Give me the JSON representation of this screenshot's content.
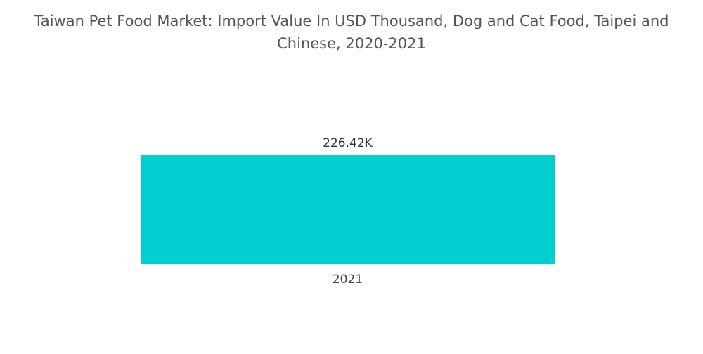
{
  "chart_data": {
    "type": "bar",
    "title": "Taiwan Pet Food Market: Import Value In USD Thousand, Dog and Cat Food, Taipei and Chinese, 2020-2021",
    "categories": [
      "2021"
    ],
    "values": [
      226.42
    ],
    "data_labels": [
      "226.42K"
    ],
    "xlabel": "",
    "ylabel": "",
    "ylim": [
      0,
      226.42
    ],
    "grid": false,
    "legend": "none",
    "colors": [
      "#00CED1"
    ]
  },
  "colors": {
    "bar": "#00CED1",
    "text": "#555555",
    "background": "#ffffff"
  }
}
